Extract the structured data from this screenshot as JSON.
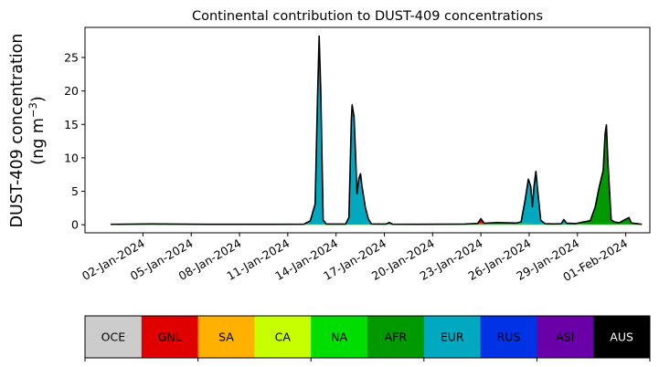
{
  "chart_data": {
    "type": "area",
    "title": "Continental contribution to DUST-409 concentrations",
    "ylabel_line1": "DUST-409 concentration",
    "ylabel_line2_prefix": "(ng m",
    "ylabel_line2_sup": "−3",
    "ylabel_line2_suffix": ")",
    "xlabel": "",
    "x_tick_labels": [
      "02-Jan-2024",
      "05-Jan-2024",
      "08-Jan-2024",
      "11-Jan-2024",
      "14-Jan-2024",
      "17-Jan-2024",
      "20-Jan-2024",
      "23-Jan-2024",
      "26-Jan-2024",
      "29-Jan-2024",
      "01-Feb-2024"
    ],
    "x_tick_days": [
      1,
      4,
      7,
      10,
      13,
      16,
      19,
      22,
      25,
      28,
      31
    ],
    "y_ticks": [
      0,
      5,
      10,
      15,
      20,
      25
    ],
    "xlim_days": [
      -2.6,
      32.5
    ],
    "ylim": [
      -1.2,
      29.5
    ],
    "x_unit": "days since 01-Jan-2024",
    "grid": false,
    "series": [
      {
        "name": "NA",
        "color": "#00dd00",
        "points": [
          [
            -1,
            0.05
          ],
          [
            1.5,
            0.1
          ],
          [
            5,
            0.05
          ],
          [
            9,
            0.05
          ],
          [
            12.2,
            0.08
          ],
          [
            14.8,
            0.1
          ],
          [
            18,
            0.05
          ],
          [
            21,
            0.08
          ],
          [
            23,
            0.3
          ],
          [
            26.6,
            0.1
          ],
          [
            27.5,
            0.2
          ],
          [
            28.5,
            0.1
          ],
          [
            29.6,
            0.1
          ],
          [
            30.2,
            0.1
          ],
          [
            31.5,
            0.05
          ]
        ]
      },
      {
        "name": "AFR",
        "color": "#009a00",
        "points": [
          [
            -1,
            0
          ],
          [
            27.9,
            0
          ],
          [
            28.4,
            0.3
          ],
          [
            28.8,
            0.5
          ],
          [
            29.1,
            2.5
          ],
          [
            29.35,
            5.5
          ],
          [
            29.6,
            8
          ],
          [
            29.72,
            13.5
          ],
          [
            29.8,
            14.8
          ],
          [
            29.9,
            9
          ],
          [
            30.1,
            0.6
          ],
          [
            30.3,
            0.3
          ],
          [
            30.6,
            0.2
          ],
          [
            30.9,
            0.6
          ],
          [
            31.2,
            1
          ],
          [
            31.35,
            0.2
          ],
          [
            32,
            0
          ]
        ]
      },
      {
        "name": "GNL",
        "color": "#e00000",
        "points": [
          [
            -1,
            0
          ],
          [
            21.8,
            0
          ],
          [
            22.0,
            0.7
          ],
          [
            22.2,
            0
          ],
          [
            32,
            0
          ]
        ]
      },
      {
        "name": "EUR",
        "color": "#00a8c0",
        "points": [
          [
            -1,
            0
          ],
          [
            11.0,
            0
          ],
          [
            11.4,
            0.5
          ],
          [
            11.7,
            3
          ],
          [
            11.85,
            19
          ],
          [
            11.95,
            28.1
          ],
          [
            12.05,
            20
          ],
          [
            12.2,
            0.6
          ],
          [
            12.4,
            0
          ],
          [
            13.6,
            0
          ],
          [
            13.8,
            1
          ],
          [
            13.95,
            15.5
          ],
          [
            14.0,
            17.8
          ],
          [
            14.12,
            16
          ],
          [
            14.22,
            10
          ],
          [
            14.3,
            4.5
          ],
          [
            14.42,
            6.8
          ],
          [
            14.52,
            7.5
          ],
          [
            14.62,
            5.5
          ],
          [
            14.82,
            2.5
          ],
          [
            15.0,
            0.8
          ],
          [
            15.2,
            0
          ],
          [
            16.1,
            0
          ],
          [
            16.3,
            0.25
          ],
          [
            16.5,
            0
          ],
          [
            24.2,
            0
          ],
          [
            24.5,
            0.2
          ],
          [
            24.75,
            3.5
          ],
          [
            24.95,
            6.6
          ],
          [
            25.1,
            5.5
          ],
          [
            25.2,
            2.5
          ],
          [
            25.3,
            5.5
          ],
          [
            25.42,
            7.8
          ],
          [
            25.55,
            4.5
          ],
          [
            25.72,
            0.5
          ],
          [
            26.0,
            0
          ],
          [
            27.0,
            0
          ],
          [
            27.15,
            0.6
          ],
          [
            27.35,
            0
          ],
          [
            32,
            0
          ]
        ]
      },
      {
        "name": "RUS",
        "color": "#0032e6",
        "points": [
          [
            -1,
            0.02
          ],
          [
            32,
            0.02
          ]
        ]
      }
    ],
    "total_line_color": "#000000",
    "legend_colorbar": [
      {
        "label": "OCE",
        "color": "#cccccc"
      },
      {
        "label": "GNL",
        "color": "#e00000"
      },
      {
        "label": "SA",
        "color": "#ffb000"
      },
      {
        "label": "CA",
        "color": "#c8ff00"
      },
      {
        "label": "NA",
        "color": "#00dd00"
      },
      {
        "label": "AFR",
        "color": "#009a00"
      },
      {
        "label": "EUR",
        "color": "#00a8c0"
      },
      {
        "label": "RUS",
        "color": "#0032e6"
      },
      {
        "label": "ASI",
        "color": "#6a00a8"
      },
      {
        "label": "AUS",
        "color": "#000000"
      }
    ]
  }
}
